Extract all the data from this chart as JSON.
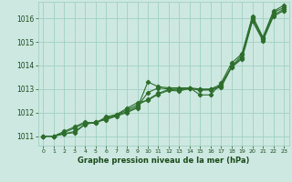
{
  "bg_color": "#cce8e0",
  "grid_color": "#99ccbb",
  "line_color": "#2d6e2d",
  "text_color": "#1a4a1a",
  "xlabel": "Graphe pression niveau de la mer (hPa)",
  "xlim": [
    -0.5,
    23.5
  ],
  "ylim": [
    1010.6,
    1016.7
  ],
  "xticks": [
    0,
    1,
    2,
    3,
    4,
    5,
    6,
    7,
    8,
    9,
    10,
    11,
    12,
    13,
    14,
    15,
    16,
    17,
    18,
    19,
    20,
    21,
    22,
    23
  ],
  "yticks": [
    1011,
    1012,
    1013,
    1014,
    1015,
    1016
  ],
  "series": [
    [
      1011.0,
      1011.0,
      1011.1,
      1011.15,
      1011.5,
      1011.6,
      1011.7,
      1011.85,
      1012.0,
      1012.2,
      1013.3,
      1013.1,
      1013.05,
      1013.05,
      1013.05,
      1012.75,
      1012.75,
      1013.25,
      1014.1,
      1014.5,
      1016.1,
      1015.2,
      1016.3,
      1016.55
    ],
    [
      1011.0,
      1011.0,
      1011.1,
      1011.2,
      1011.5,
      1011.6,
      1011.72,
      1011.88,
      1012.05,
      1012.25,
      1012.85,
      1013.05,
      1013.0,
      1013.0,
      1013.05,
      1013.0,
      1013.0,
      1013.2,
      1013.95,
      1014.45,
      1016.05,
      1015.15,
      1016.25,
      1016.45
    ],
    [
      1011.0,
      1011.0,
      1011.15,
      1011.35,
      1011.55,
      1011.55,
      1011.78,
      1011.9,
      1012.12,
      1012.32,
      1012.55,
      1012.82,
      1012.98,
      1012.95,
      1013.03,
      1012.98,
      1012.98,
      1013.12,
      1013.93,
      1014.35,
      1015.95,
      1015.1,
      1016.15,
      1016.38
    ],
    [
      1011.0,
      1011.0,
      1011.2,
      1011.4,
      1011.6,
      1011.55,
      1011.82,
      1011.92,
      1012.18,
      1012.42,
      1012.52,
      1012.78,
      1012.94,
      1012.92,
      1013.02,
      1012.95,
      1012.96,
      1013.08,
      1013.92,
      1014.28,
      1015.88,
      1015.05,
      1016.08,
      1016.33
    ]
  ],
  "marker": "D",
  "markersize": 2.2,
  "linewidth": 0.8
}
